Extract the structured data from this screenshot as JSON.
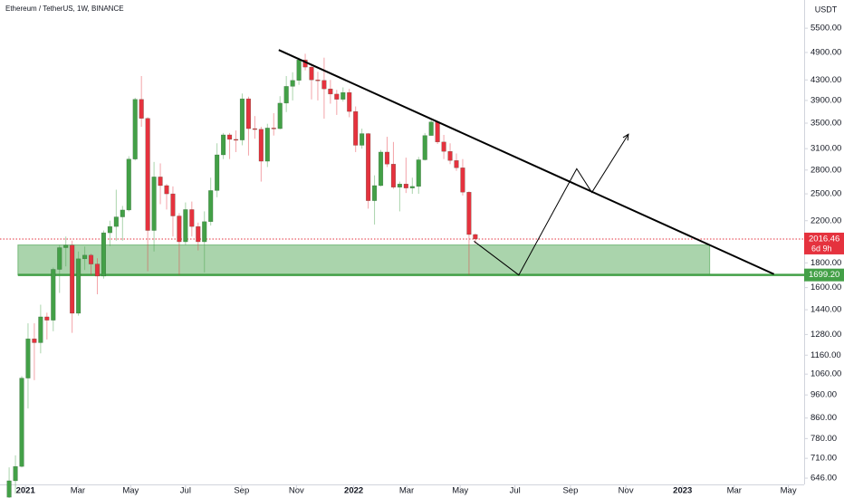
{
  "chart_data": {
    "type": "candlestick",
    "title": "Ethereum / TetherUS, 1W, BINANCE",
    "currency": "USDT",
    "log_scale": true,
    "up_color": "#43a047",
    "down_color": "#e5323e",
    "open": [
      590,
      638,
      683,
      1040,
      1254,
      1231,
      1392,
      1370,
      1745,
      1935,
      1958,
      1416,
      1835,
      1867,
      1790,
      1690,
      2077,
      2140,
      2240,
      2315,
      2950,
      3920,
      3580,
      2100,
      2710,
      2600,
      2500,
      2250,
      1990,
      2320,
      2140,
      1990,
      2190,
      2540,
      3010,
      3310,
      3240,
      3230,
      3930,
      3410,
      3400,
      2920,
      3420,
      3410,
      3850,
      4170,
      4290,
      4730,
      4570,
      4300,
      4290,
      4120,
      4020,
      3920,
      4050,
      3700,
      3150,
      3330,
      2420,
      2600,
      3050,
      2880,
      2580,
      2620,
      2570,
      2590,
      2940,
      3300,
      3520,
      3200,
      3060,
      2930,
      2830,
      2520,
      2060
    ],
    "high": [
      680,
      720,
      1050,
      1350,
      1350,
      1475,
      1420,
      1760,
      1960,
      2040,
      2000,
      1900,
      1945,
      1880,
      1840,
      2100,
      2200,
      2550,
      2360,
      2990,
      3950,
      4380,
      3600,
      2910,
      2890,
      2620,
      2590,
      2280,
      2400,
      2410,
      2180,
      2300,
      2700,
      3180,
      3340,
      3340,
      3380,
      4030,
      3970,
      3620,
      3440,
      3490,
      3670,
      3980,
      4380,
      4460,
      4780,
      4870,
      4610,
      4470,
      4780,
      4300,
      4100,
      4150,
      4120,
      3790,
      3410,
      3340,
      2730,
      3080,
      3280,
      3200,
      2650,
      2970,
      2700,
      2980,
      3340,
      3580,
      3530,
      3310,
      3180,
      3030,
      2950,
      2530,
      2070
    ],
    "low": [
      560,
      600,
      680,
      900,
      1030,
      1170,
      1250,
      1300,
      1560,
      1770,
      1290,
      1400,
      1740,
      1700,
      1550,
      1670,
      1950,
      2000,
      2000,
      2300,
      2930,
      3440,
      1730,
      1900,
      2380,
      2320,
      2040,
      1700,
      1960,
      2040,
      1910,
      1720,
      2150,
      2460,
      2950,
      2950,
      3050,
      3150,
      3000,
      3250,
      2650,
      2840,
      3300,
      3400,
      3690,
      3900,
      4200,
      4500,
      3920,
      3900,
      3575,
      3840,
      3640,
      3880,
      3600,
      3050,
      3100,
      2330,
      2160,
      2590,
      2840,
      2560,
      2300,
      2510,
      2500,
      2500,
      2930,
      3300,
      3170,
      2950,
      2880,
      2790,
      2480,
      1700,
      1970
    ],
    "close": [
      638,
      683,
      1040,
      1254,
      1231,
      1392,
      1370,
      1745,
      1935,
      1958,
      1416,
      1835,
      1867,
      1790,
      1690,
      2077,
      2140,
      2240,
      2315,
      2950,
      3920,
      3580,
      2100,
      2710,
      2600,
      2500,
      2250,
      1990,
      2320,
      2140,
      1990,
      2190,
      2540,
      3010,
      3310,
      3240,
      3230,
      3930,
      3410,
      3400,
      2920,
      3420,
      3410,
      3850,
      4170,
      4290,
      4730,
      4570,
      4300,
      4290,
      4120,
      4020,
      3920,
      4050,
      3700,
      3150,
      3330,
      2420,
      2600,
      3050,
      2880,
      2580,
      2620,
      2570,
      2590,
      2940,
      3300,
      3520,
      3200,
      3060,
      2930,
      2830,
      2520,
      2060,
      2016.46
    ],
    "xlim": [
      -1.45,
      126.2
    ],
    "xticks": [
      {
        "value": 2.6,
        "label": "2021"
      },
      {
        "value": 10.9,
        "label": "Mar"
      },
      {
        "value": 19.3,
        "label": "May"
      },
      {
        "value": 28.0,
        "label": "Jul"
      },
      {
        "value": 36.9,
        "label": "Sep"
      },
      {
        "value": 45.6,
        "label": "Nov"
      },
      {
        "value": 54.7,
        "label": "2022"
      },
      {
        "value": 63.1,
        "label": "Mar"
      },
      {
        "value": 71.6,
        "label": "May"
      },
      {
        "value": 80.3,
        "label": "Jul"
      },
      {
        "value": 89.1,
        "label": "Sep"
      },
      {
        "value": 97.9,
        "label": "Nov"
      },
      {
        "value": 106.9,
        "label": "2023"
      },
      {
        "value": 115.1,
        "label": "Mar"
      },
      {
        "value": 123.7,
        "label": "May"
      }
    ],
    "ylim": [
      627,
      6290
    ],
    "yticks": [
      {
        "value": 5500,
        "label": "5500.00"
      },
      {
        "value": 4900,
        "label": "4900.00"
      },
      {
        "value": 4300,
        "label": "4300.00"
      },
      {
        "value": 3900,
        "label": "3900.00"
      },
      {
        "value": 3500,
        "label": "3500.00"
      },
      {
        "value": 3100,
        "label": "3100.00"
      },
      {
        "value": 2800,
        "label": "2800.00"
      },
      {
        "value": 2500,
        "label": "2500.00"
      },
      {
        "value": 2200,
        "label": "2200.00"
      },
      {
        "value": 1800,
        "label": "1800.00"
      },
      {
        "value": 1600,
        "label": "1600.00"
      },
      {
        "value": 1440,
        "label": "1440.00"
      },
      {
        "value": 1280,
        "label": "1280.00"
      },
      {
        "value": 1160,
        "label": "1160.00"
      },
      {
        "value": 1060,
        "label": "1060.00"
      },
      {
        "value": 960,
        "label": "960.00"
      },
      {
        "value": 860,
        "label": "860.00"
      },
      {
        "value": 780,
        "label": "780.00"
      },
      {
        "value": 710,
        "label": "710.00"
      },
      {
        "value": 646,
        "label": "646.00"
      }
    ],
    "last_price": {
      "value": 2016.46,
      "label": "2016.46",
      "countdown": "6d 9h",
      "color": "#e5323e"
    },
    "support": {
      "value": 1699.2,
      "label": "1699.20",
      "color": "#43a047"
    },
    "drawings": {
      "zone": {
        "x": [
          1.4,
          111.2
        ],
        "y": [
          1699.2,
          1960
        ],
        "color": "#43a047"
      },
      "trendline": {
        "x": [
          42.8,
          121.4
        ],
        "y": [
          4959,
          1706
        ],
        "color": "#000000"
      },
      "projection": {
        "x": [
          73.8,
          80.9,
          90.1,
          92.5,
          98.3
        ],
        "y": [
          1995,
          1699,
          2817,
          2517,
          3320
        ],
        "color": "#000000"
      }
    }
  }
}
